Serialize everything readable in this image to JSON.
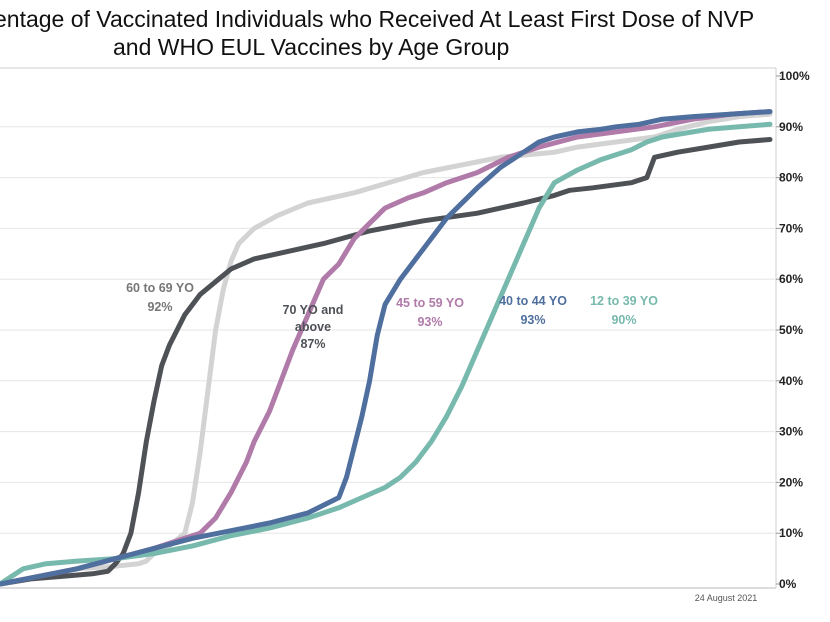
{
  "title": {
    "line1": "entage of Vaccinated Individuals who Received At Least First Dose of NVP",
    "line2": "and WHO EUL Vaccines by Age Group"
  },
  "footnote": "24 August 2021",
  "colors": {
    "60_69": "#d3d3d3",
    "70_above": "#4e5156",
    "45_59": "#b07aa9",
    "40_44": "#4f6f9e",
    "12_39": "#78b9ad",
    "grid": "#e6e6e6",
    "label_60_69": "#767676"
  },
  "chart_data": {
    "type": "line",
    "title": "entage of Vaccinated Individuals who Received At Least First Dose of NVP and WHO EUL Vaccines by Age Group",
    "xlabel": "",
    "ylabel": "",
    "ylim": [
      0,
      100
    ],
    "xlim": [
      0,
      100
    ],
    "y_ticks": [
      "0%",
      "10%",
      "20%",
      "30%",
      "40%",
      "50%",
      "60%",
      "70%",
      "80%",
      "90%",
      "100%"
    ],
    "grid": "horizontal",
    "legend": "inline labels",
    "series": [
      {
        "key": "60_69",
        "name": "60 to 69 YO",
        "final": "92%",
        "x": [
          0,
          5,
          10,
          15,
          18,
          19,
          20,
          22,
          24,
          25,
          26,
          27,
          28,
          29,
          30,
          31,
          33,
          36,
          40,
          46,
          55,
          65,
          72,
          75,
          80,
          85,
          88,
          92,
          96,
          100
        ],
        "y": [
          0,
          1.5,
          3,
          3.5,
          4,
          4.5,
          6,
          7.5,
          10,
          16,
          26,
          38,
          50,
          58,
          63.5,
          67,
          70,
          72.5,
          75,
          77,
          81,
          84,
          85,
          86,
          87,
          88,
          89.5,
          91,
          92,
          92.5
        ]
      },
      {
        "key": "70_above",
        "name": "70 YO and above",
        "final": "87%",
        "x": [
          0,
          4,
          8,
          12,
          14,
          15,
          16,
          17,
          18,
          19,
          20,
          21,
          22,
          23,
          24,
          25,
          26,
          28,
          30,
          33,
          36,
          42,
          48,
          55,
          62,
          68,
          72,
          74,
          77,
          82,
          84,
          85,
          88,
          92,
          96,
          100
        ],
        "y": [
          0,
          1,
          1.5,
          2,
          2.5,
          4,
          6,
          10,
          18,
          28,
          36,
          43,
          47,
          50,
          53,
          55,
          57,
          59.5,
          62,
          64,
          65,
          67,
          69.5,
          71.5,
          73,
          75,
          76.5,
          77.5,
          78,
          79,
          80,
          84,
          85,
          86,
          87,
          87.5
        ]
      },
      {
        "key": "45_59",
        "name": "45 to 59 YO",
        "final": "93%",
        "x": [
          0,
          5,
          10,
          15,
          20,
          24,
          26,
          28,
          30,
          32,
          33,
          34,
          35,
          36,
          38,
          40,
          42,
          44,
          46,
          48,
          50,
          53,
          55,
          58,
          62,
          66,
          70,
          75,
          80,
          85,
          90,
          95,
          100
        ],
        "y": [
          0,
          1.5,
          3,
          5,
          7,
          9,
          10,
          13,
          18,
          24,
          28,
          31,
          34,
          38,
          46,
          53,
          60,
          63,
          68,
          71,
          74,
          76,
          77,
          79,
          81,
          84,
          86,
          88,
          89,
          90,
          91.5,
          92.5,
          93
        ]
      },
      {
        "key": "40_44",
        "name": "40 to 44 YO",
        "final": "93%",
        "x": [
          0,
          5,
          10,
          15,
          20,
          25,
          30,
          35,
          40,
          42,
          44,
          45,
          46,
          47,
          48,
          49,
          50,
          52,
          55,
          58,
          62,
          65,
          68,
          70,
          72,
          75,
          78,
          80,
          83,
          86,
          90,
          95,
          100
        ],
        "y": [
          0,
          1.5,
          3,
          5,
          7,
          9,
          10.5,
          12,
          14,
          15.5,
          17,
          21,
          27,
          33,
          40,
          49,
          55,
          60,
          66,
          72,
          78,
          82,
          85,
          87,
          88,
          89,
          89.5,
          90,
          90.5,
          91.5,
          92,
          92.5,
          93
        ]
      },
      {
        "key": "12_39",
        "name": "12 to 39 YO",
        "final": "90%",
        "x": [
          0,
          3,
          6,
          10,
          15,
          20,
          25,
          30,
          35,
          40,
          44,
          47,
          50,
          52,
          54,
          56,
          58,
          60,
          62,
          64,
          66,
          68,
          70,
          72,
          75,
          78,
          80,
          82,
          84,
          86,
          88,
          92,
          96,
          100
        ],
        "y": [
          0,
          3,
          4,
          4.5,
          5,
          6,
          7.5,
          9.5,
          11,
          13,
          15,
          17,
          19,
          21,
          24,
          28,
          33,
          39,
          46,
          53,
          60,
          67,
          74,
          79,
          81.5,
          83.5,
          84.5,
          85.5,
          87,
          88,
          88.5,
          89.5,
          90,
          90.5
        ]
      }
    ]
  }
}
